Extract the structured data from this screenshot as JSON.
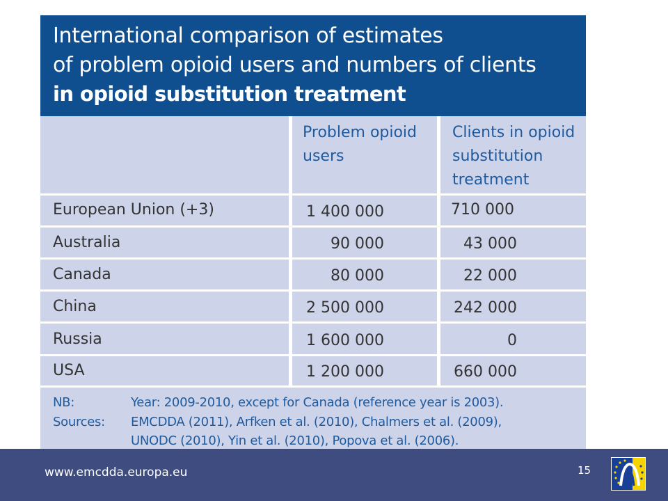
{
  "title": {
    "line1": "International comparison of estimates",
    "line2": "of problem opioid users and numbers of clients",
    "line3": "in opioid substitution treatment"
  },
  "table": {
    "headers": [
      [
        "Problem opioid",
        "users"
      ],
      [
        "Clients in opioid",
        "substitution",
        "treatment"
      ]
    ],
    "rows": [
      {
        "country": "European Union (+3)",
        "users": "1 400 000",
        "clients": "710 000"
      },
      {
        "country": "Australia",
        "users": "90 000",
        "clients": "43 000"
      },
      {
        "country": "Canada",
        "users": "80 000",
        "clients": "22 000"
      },
      {
        "country": "China",
        "users": "2 500 000",
        "clients": "242 000"
      },
      {
        "country": "Russia",
        "users": "1 600 000",
        "clients": "0"
      },
      {
        "country": "USA",
        "users": "1 200 000",
        "clients": "660 000"
      }
    ]
  },
  "notes": {
    "nb_label": "NB:",
    "nb_text": "Year: 2009-2010, except for Canada (reference year is 2003).",
    "sources_label": "Sources:",
    "sources_line1": "EMCDDA (2011), Arfken et al. (2010), Chalmers et al. (2009),",
    "sources_line2": "UNODC (2010), Yin et al. (2010), Popova et al. (2006)."
  },
  "footer": {
    "url": "www.emcdda.europa.eu",
    "page_number": "15"
  },
  "colors": {
    "title_bg": "#0f4e8f",
    "table_bg": "#cdd4ea",
    "header_text": "#1f5a9e",
    "footer_bg": "#3e4c80",
    "logo_bg": "#1a3f96",
    "logo_stars": "#f6d400"
  }
}
